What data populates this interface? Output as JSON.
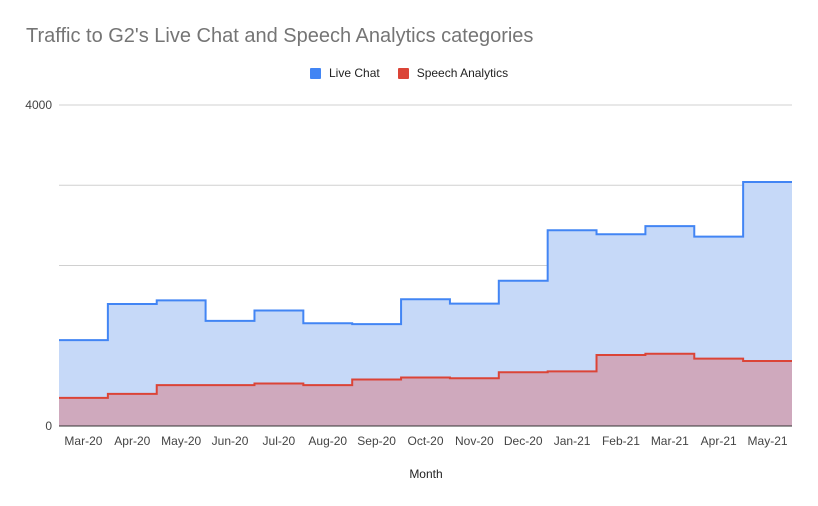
{
  "chart_data": {
    "type": "area",
    "title": "Traffic to G2's Live Chat and Speech Analytics categories",
    "xlabel": "Month",
    "ylabel": "",
    "ylim": [
      0,
      4000
    ],
    "y_ticks": [
      "0",
      "4000"
    ],
    "grid": true,
    "legend_position": "top",
    "step": true,
    "categories": [
      "Mar-20",
      "Apr-20",
      "May-20",
      "Jun-20",
      "Jul-20",
      "Aug-20",
      "Sep-20",
      "Oct-20",
      "Nov-20",
      "Dec-20",
      "Jan-21",
      "Feb-21",
      "Mar-21",
      "Apr-21",
      "May-21"
    ],
    "series": [
      {
        "name": "Live Chat",
        "color": "#4285f4",
        "fill": "#c6d9f8",
        "values": [
          1070,
          1520,
          1565,
          1310,
          1440,
          1280,
          1270,
          1580,
          1525,
          1810,
          2440,
          2390,
          2490,
          2360,
          3040
        ]
      },
      {
        "name": "Speech Analytics",
        "color": "#db4437",
        "fill": "#cfa9bd",
        "values": [
          350,
          400,
          510,
          510,
          530,
          510,
          580,
          605,
          595,
          670,
          680,
          885,
          900,
          840,
          810
        ]
      }
    ]
  }
}
